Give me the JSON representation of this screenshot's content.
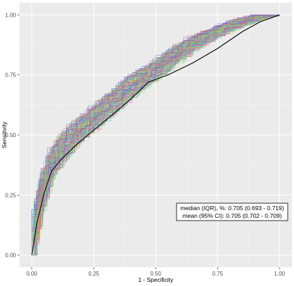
{
  "chart_data": {
    "type": "line",
    "title": "",
    "xlabel": "1 - Specificity",
    "ylabel": "Sensitivity",
    "xlim": [
      -0.05,
      1.05
    ],
    "ylim": [
      -0.05,
      1.05
    ],
    "xticks": [
      0.0,
      0.25,
      0.5,
      0.75,
      1.0
    ],
    "xtick_labels": [
      "0.00",
      "0.25",
      "0.50",
      "0.75",
      "1.00"
    ],
    "yticks": [
      0.0,
      0.25,
      0.5,
      0.75,
      1.0
    ],
    "ytick_labels": [
      "0.00",
      "0.25",
      "0.50",
      "0.75",
      "1.00"
    ],
    "grid": true,
    "legend": "none",
    "background_color": "#ebebeb",
    "series": [
      {
        "role": "summary",
        "color": "#000000",
        "x": [
          0.0,
          0.02,
          0.05,
          0.08,
          0.12,
          0.18,
          0.25,
          0.32,
          0.4,
          0.47,
          0.55,
          0.65,
          0.75,
          0.85,
          0.92,
          1.0
        ],
        "y": [
          0.0,
          0.13,
          0.26,
          0.35,
          0.4,
          0.46,
          0.52,
          0.58,
          0.65,
          0.72,
          0.75,
          0.8,
          0.86,
          0.93,
          0.97,
          1.0
        ]
      },
      {
        "role": "bootstrap-envelope",
        "count": 100,
        "x": [
          0.0,
          0.02,
          0.05,
          0.08,
          0.12,
          0.18,
          0.25,
          0.32,
          0.4,
          0.47,
          0.55,
          0.65,
          0.75,
          0.85,
          0.92,
          1.0
        ],
        "y_mid": [
          0.0,
          0.15,
          0.29,
          0.38,
          0.44,
          0.51,
          0.57,
          0.63,
          0.7,
          0.75,
          0.81,
          0.88,
          0.93,
          0.97,
          0.99,
          1.0
        ],
        "y_spread": [
          0.0,
          0.05,
          0.06,
          0.06,
          0.06,
          0.05,
          0.05,
          0.05,
          0.05,
          0.04,
          0.04,
          0.03,
          0.02,
          0.015,
          0.01,
          0.0
        ]
      }
    ],
    "annotation": {
      "lines": [
        "median (IQR), %: 0.705 (0.693 - 0.719)",
        "mean (95% CI): 0.705 (0.702 - 0.709)"
      ],
      "position": "lower-right"
    }
  }
}
